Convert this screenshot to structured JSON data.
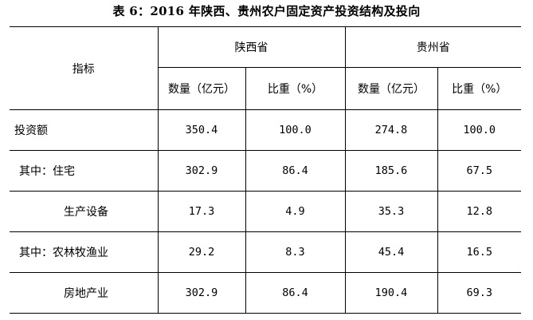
{
  "title": "表 6：2016 年陕西、贵州农户固定资产投资结构及投向",
  "header": {
    "indicator": "指标",
    "groups": [
      "陕西省",
      "贵州省"
    ],
    "sub": [
      "数量（亿元）",
      "比重（%）",
      "数量（亿元）",
      "比重（%）"
    ]
  },
  "rows": [
    {
      "label": "投资额",
      "values": [
        "350.4",
        "100.0",
        "274.8",
        "100.0"
      ]
    },
    {
      "label": "其中：住宅",
      "values": [
        "302.9",
        "86.4",
        "185.6",
        "67.5"
      ]
    },
    {
      "label": "生产设备",
      "values": [
        "17.3",
        "4.9",
        "35.3",
        "12.8"
      ]
    },
    {
      "label": "其中：农林牧渔业",
      "values": [
        "29.2",
        "8.3",
        "45.4",
        "16.5"
      ]
    },
    {
      "label": "房地产业",
      "values": [
        "302.9",
        "86.4",
        "190.4",
        "69.3"
      ]
    }
  ]
}
